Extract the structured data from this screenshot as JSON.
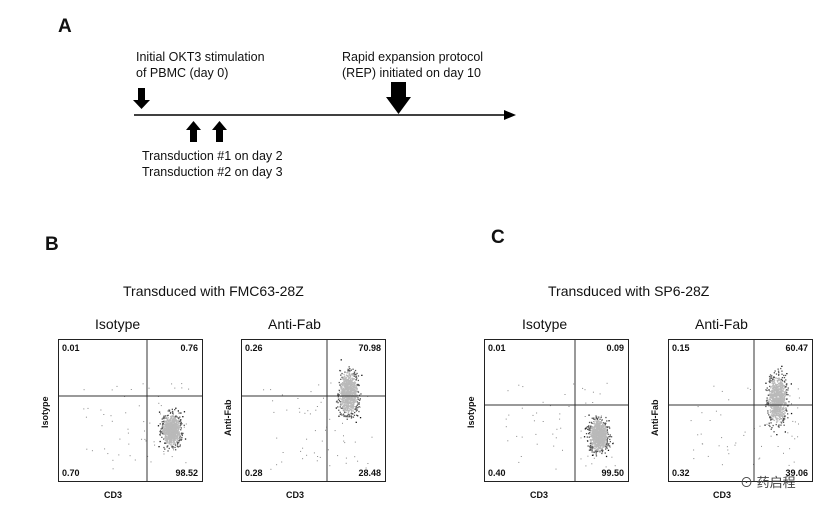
{
  "panel_a": {
    "letter": "A",
    "stim_line1": "Initial OKT3 stimulation",
    "stim_line2": "of PBMC (day 0)",
    "rep_line1": "Rapid expansion protocol",
    "rep_line2": "(REP) initiated on day 10",
    "trans_line1": "Transduction #1 on day 2",
    "trans_line2": "Transduction #2 on day 3"
  },
  "panel_b": {
    "letter": "B",
    "title": "Transduced with FMC63-28Z",
    "plots": [
      {
        "title": "Isotype",
        "ylabel": "Isotype",
        "xlabel": "CD3",
        "q": {
          "ul": "0.01",
          "ur": "0.76",
          "ll": "0.70",
          "lr": "98.52"
        }
      },
      {
        "title": "Anti-Fab",
        "ylabel": "Anti-Fab",
        "xlabel": "CD3",
        "q": {
          "ul": "0.26",
          "ur": "70.98",
          "ll": "0.28",
          "lr": "28.48"
        }
      }
    ]
  },
  "panel_c": {
    "letter": "C",
    "title": "Transduced with SP6-28Z",
    "plots": [
      {
        "title": "Isotype",
        "ylabel": "Isotype",
        "xlabel": "CD3",
        "q": {
          "ul": "0.01",
          "ur": "0.09",
          "ll": "0.40",
          "lr": "99.50"
        }
      },
      {
        "title": "Anti-Fab",
        "ylabel": "Anti-Fab",
        "xlabel": "CD3",
        "q": {
          "ul": "0.15",
          "ur": "60.47",
          "ll": "0.32",
          "lr": "39.06"
        }
      }
    ]
  },
  "watermark": "药启程"
}
